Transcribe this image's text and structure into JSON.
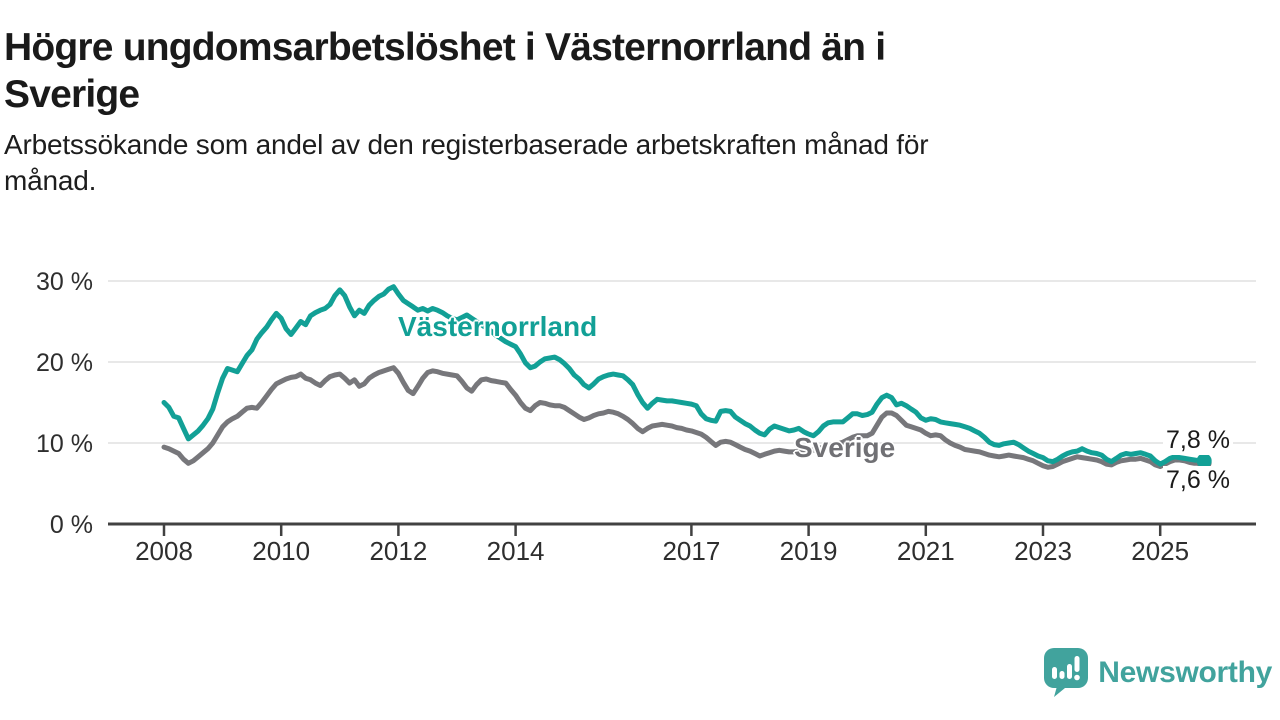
{
  "header": {
    "title_lines": [
      "Högre ungdomsarbetslöshet i Västernorrland än i",
      "Sverige"
    ],
    "subtitle_lines": [
      "Arbetssökande som andel av den registerbaserade arbetskraften månad för",
      "månad."
    ]
  },
  "chart_data": {
    "type": "line",
    "title": "Högre ungdomsarbetslöshet i Västernorrland än i Sverige",
    "subtitle": "Arbetssökande som andel av den registerbaserade arbetskraften månad för månad.",
    "grid": "horizontal-only",
    "legend_position": "inline-labels-on-lines",
    "x_axis": {
      "tick_years": [
        2008,
        2010,
        2012,
        2014,
        2017,
        2019,
        2021,
        2023,
        2025
      ],
      "tick_labels": [
        "2008",
        "2010",
        "2012",
        "2014",
        "2017",
        "2019",
        "2021",
        "2023",
        "2025"
      ],
      "range_years": [
        2007.1,
        2026.6
      ]
    },
    "y_axis": {
      "ticks": [
        0,
        10,
        20,
        30
      ],
      "tick_labels": [
        "0 %",
        "10 %",
        "20 %",
        "30 %"
      ],
      "unit": "%",
      "range": [
        0,
        33
      ]
    },
    "series": [
      {
        "name": "Sverige",
        "color": "#77777b",
        "start_year": 2008,
        "step_months": 1,
        "end_label": "7,6 %",
        "end_value": 7.6,
        "end_dot": true,
        "values": [
          9.5,
          9.3,
          9.0,
          8.7,
          8.0,
          7.5,
          7.8,
          8.3,
          8.8,
          9.3,
          10.0,
          11.0,
          12.0,
          12.6,
          13.0,
          13.3,
          13.8,
          14.3,
          14.4,
          14.3,
          15.0,
          15.8,
          16.6,
          17.3,
          17.6,
          17.9,
          18.1,
          18.2,
          18.5,
          18.0,
          17.8,
          17.4,
          17.1,
          17.7,
          18.2,
          18.4,
          18.5,
          18.0,
          17.4,
          17.8,
          17.0,
          17.3,
          18.0,
          18.4,
          18.7,
          18.9,
          19.1,
          19.3,
          18.6,
          17.5,
          16.5,
          16.1,
          17.0,
          18.0,
          18.7,
          18.9,
          18.8,
          18.6,
          18.5,
          18.4,
          18.3,
          17.6,
          16.8,
          16.4,
          17.2,
          17.8,
          17.9,
          17.7,
          17.6,
          17.5,
          17.4,
          16.6,
          15.9,
          15.0,
          14.3,
          14.0,
          14.6,
          15.0,
          14.9,
          14.7,
          14.6,
          14.6,
          14.4,
          14.0,
          13.6,
          13.2,
          12.9,
          13.1,
          13.4,
          13.6,
          13.7,
          13.9,
          13.8,
          13.6,
          13.3,
          12.9,
          12.4,
          11.8,
          11.4,
          11.8,
          12.1,
          12.2,
          12.3,
          12.2,
          12.1,
          11.9,
          11.8,
          11.6,
          11.5,
          11.3,
          11.1,
          10.7,
          10.2,
          9.7,
          10.1,
          10.2,
          10.1,
          9.8,
          9.5,
          9.2,
          9.0,
          8.7,
          8.4,
          8.6,
          8.8,
          9.0,
          9.1,
          9.0,
          8.9,
          8.9,
          9.0,
          9.1,
          9.2,
          9.1,
          9.3,
          9.5,
          9.6,
          9.7,
          9.9,
          10.1,
          10.4,
          10.7,
          10.9,
          10.9,
          10.9,
          11.2,
          12.2,
          13.2,
          13.7,
          13.7,
          13.4,
          12.8,
          12.2,
          12.0,
          11.8,
          11.6,
          11.2,
          10.9,
          11.0,
          10.9,
          10.4,
          10.0,
          9.7,
          9.5,
          9.2,
          9.1,
          9.0,
          8.9,
          8.7,
          8.5,
          8.4,
          8.3,
          8.4,
          8.5,
          8.4,
          8.3,
          8.2,
          8.0,
          7.8,
          7.5,
          7.2,
          7.0,
          7.1,
          7.4,
          7.7,
          7.9,
          8.1,
          8.3,
          8.2,
          8.1,
          8.0,
          7.9,
          7.7,
          7.4,
          7.3,
          7.6,
          7.8,
          7.9,
          8.0,
          8.0,
          8.1,
          7.9,
          7.7,
          7.3,
          7.1,
          7.4,
          7.7,
          7.9,
          7.9,
          7.8,
          7.6,
          7.5,
          7.5,
          7.6
        ]
      },
      {
        "name": "Västernorrland",
        "color": "#12a096",
        "start_year": 2008,
        "step_months": 1,
        "end_label": "7,8 %",
        "end_value": 7.8,
        "end_dot": true,
        "values": [
          15.0,
          14.4,
          13.3,
          13.1,
          11.8,
          10.5,
          11.0,
          11.5,
          12.2,
          13.0,
          14.2,
          16.2,
          18.0,
          19.2,
          19.0,
          18.8,
          19.8,
          20.8,
          21.5,
          22.8,
          23.6,
          24.3,
          25.2,
          26.0,
          25.4,
          24.1,
          23.4,
          24.2,
          25.0,
          24.6,
          25.7,
          26.1,
          26.4,
          26.6,
          27.1,
          28.2,
          28.9,
          28.2,
          26.8,
          25.7,
          26.4,
          26.0,
          27.0,
          27.6,
          28.1,
          28.4,
          29.0,
          29.3,
          28.4,
          27.6,
          27.2,
          26.8,
          26.4,
          26.6,
          26.3,
          26.6,
          26.4,
          26.1,
          25.7,
          25.4,
          25.2,
          25.5,
          25.8,
          25.4,
          25.0,
          24.6,
          24.2,
          23.8,
          23.3,
          22.9,
          22.5,
          22.2,
          21.9,
          21.0,
          19.9,
          19.3,
          19.5,
          20.0,
          20.4,
          20.5,
          20.6,
          20.3,
          19.8,
          19.2,
          18.4,
          17.9,
          17.2,
          16.8,
          17.3,
          17.9,
          18.2,
          18.4,
          18.5,
          18.4,
          18.3,
          17.8,
          17.2,
          16.0,
          15.0,
          14.3,
          14.9,
          15.4,
          15.3,
          15.2,
          15.2,
          15.1,
          15.0,
          14.9,
          14.8,
          14.6,
          13.6,
          13.0,
          12.8,
          12.7,
          13.9,
          14.0,
          13.9,
          13.2,
          12.8,
          12.4,
          12.1,
          11.6,
          11.2,
          11.0,
          11.7,
          12.1,
          11.9,
          11.7,
          11.5,
          11.6,
          11.8,
          11.4,
          11.1,
          10.9,
          11.4,
          12.1,
          12.5,
          12.6,
          12.6,
          12.6,
          13.1,
          13.6,
          13.6,
          13.4,
          13.5,
          13.8,
          14.8,
          15.6,
          15.9,
          15.6,
          14.7,
          14.9,
          14.6,
          14.2,
          13.8,
          13.1,
          12.8,
          13.0,
          12.9,
          12.6,
          12.5,
          12.4,
          12.3,
          12.2,
          12.0,
          11.8,
          11.5,
          11.2,
          10.7,
          10.1,
          9.8,
          9.7,
          9.9,
          10.0,
          10.1,
          9.8,
          9.4,
          9.0,
          8.7,
          8.4,
          8.2,
          7.8,
          7.7,
          8.0,
          8.4,
          8.7,
          8.9,
          9.0,
          9.3,
          9.0,
          8.8,
          8.7,
          8.5,
          8.0,
          7.7,
          8.1,
          8.5,
          8.7,
          8.6,
          8.7,
          8.8,
          8.6,
          8.4,
          7.8,
          7.4,
          7.7,
          8.1,
          8.3,
          8.2,
          8.1,
          8.0,
          7.9,
          7.8,
          7.8
        ]
      }
    ],
    "colors": {
      "grid": "#e1e1e1",
      "axis": "#414141",
      "tick_text": "#2e2e2e",
      "end_label_text": "#1a1a1a"
    }
  },
  "branding": {
    "wordmark": "Newsworthy",
    "logo_color": "#41a39d"
  }
}
